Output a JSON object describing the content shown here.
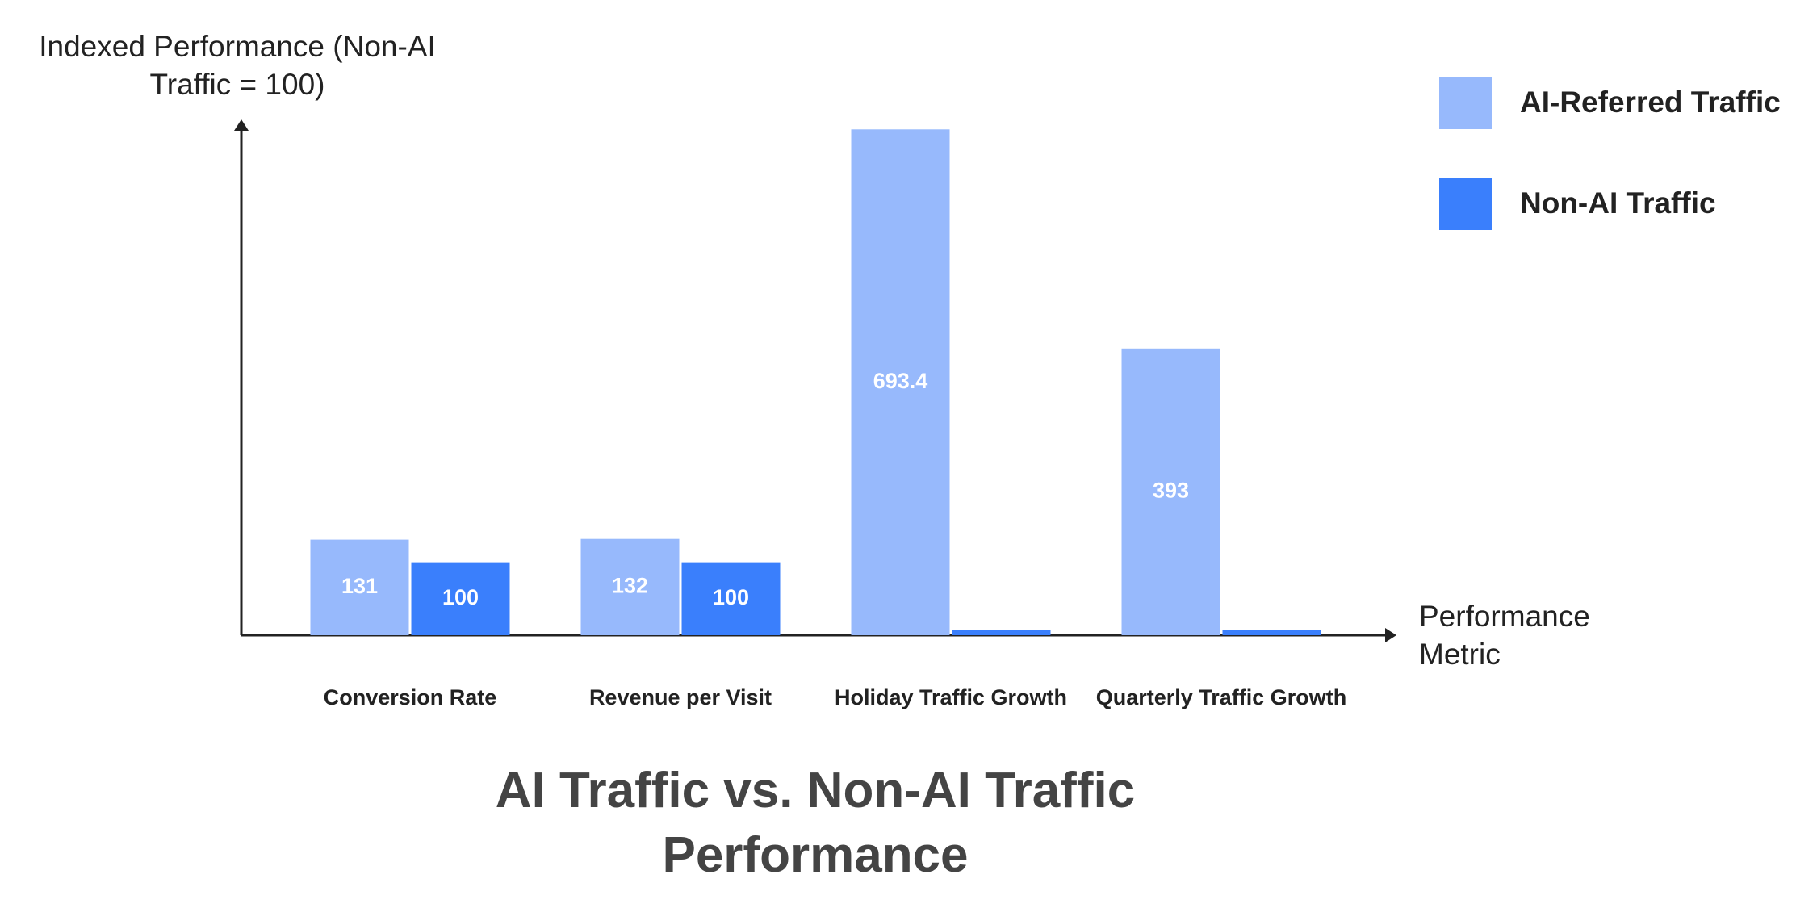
{
  "chart_data": {
    "type": "grouped-bar",
    "title": "AI Traffic vs. Non-AI Traffic Performance",
    "y_label": "Indexed Performance (Non-AI Traffic = 100)",
    "x_label": "Performance Metric",
    "categories": [
      "Conversion Rate",
      "Revenue per Visit",
      "Holiday Traffic Growth",
      "Quarterly Traffic Growth"
    ],
    "series": [
      {
        "name": "AI-Referred Traffic",
        "color": "#97b9fc",
        "values": [
          131,
          132,
          693.4,
          393
        ]
      },
      {
        "name": "Non-AI Traffic",
        "color": "#3a7ffc",
        "values": [
          100,
          100,
          7,
          7
        ]
      }
    ],
    "ylim": [
      0,
      707
    ],
    "legend": "top-right"
  }
}
